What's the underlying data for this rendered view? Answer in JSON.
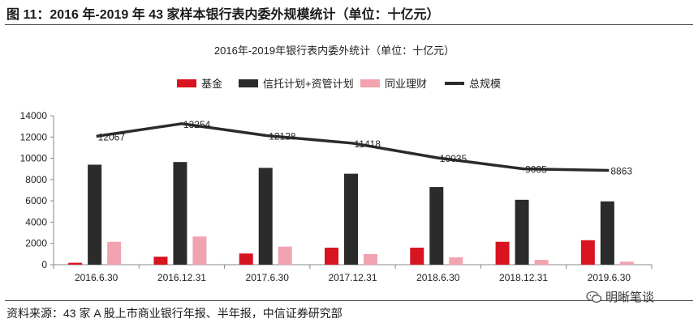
{
  "figure_title": "图 11：2016 年-2019 年 43 家样本银行表内委外规模统计（单位：十亿元）",
  "source_note": "资料来源：43 家 A 股上市商业银行年报、半年报，中信证券研究部",
  "watermark": "明晰笔谈",
  "colors": {
    "fund": "#d7141f",
    "trust": "#2b2b2b",
    "interbank": "#f2a3b0",
    "total": "#2b2b2b"
  },
  "chart_data": {
    "type": "bar",
    "title": "2016年-2019年银行表内委外统计（单位：十亿元）",
    "categories": [
      "2016.6.30",
      "2016.12.31",
      "2017.6.30",
      "2017.12.31",
      "2018.6.30",
      "2018.12.31",
      "2019.6.30"
    ],
    "ylim": [
      0,
      14000
    ],
    "yticks": [
      "0",
      "2000",
      "4000",
      "6000",
      "8000",
      "10000",
      "12000",
      "14000"
    ],
    "legend_position": "top",
    "grid": false,
    "series": [
      {
        "name": "基金",
        "kind": "bar",
        "values": [
          180,
          750,
          1050,
          1600,
          1600,
          2150,
          2300
        ]
      },
      {
        "name": "信托计划+资管计划",
        "kind": "bar",
        "values": [
          9400,
          9650,
          9100,
          8550,
          7300,
          6100,
          5950
        ]
      },
      {
        "name": "同业理财",
        "kind": "bar",
        "values": [
          2150,
          2650,
          1700,
          1000,
          700,
          450,
          280
        ]
      },
      {
        "name": "总规模",
        "kind": "line",
        "values": [
          12067,
          13254,
          12128,
          11418,
          10035,
          9005,
          8863
        ],
        "labels": [
          "12067",
          "13254",
          "12128",
          "11418",
          "10035",
          "9005",
          "8863"
        ]
      }
    ]
  }
}
